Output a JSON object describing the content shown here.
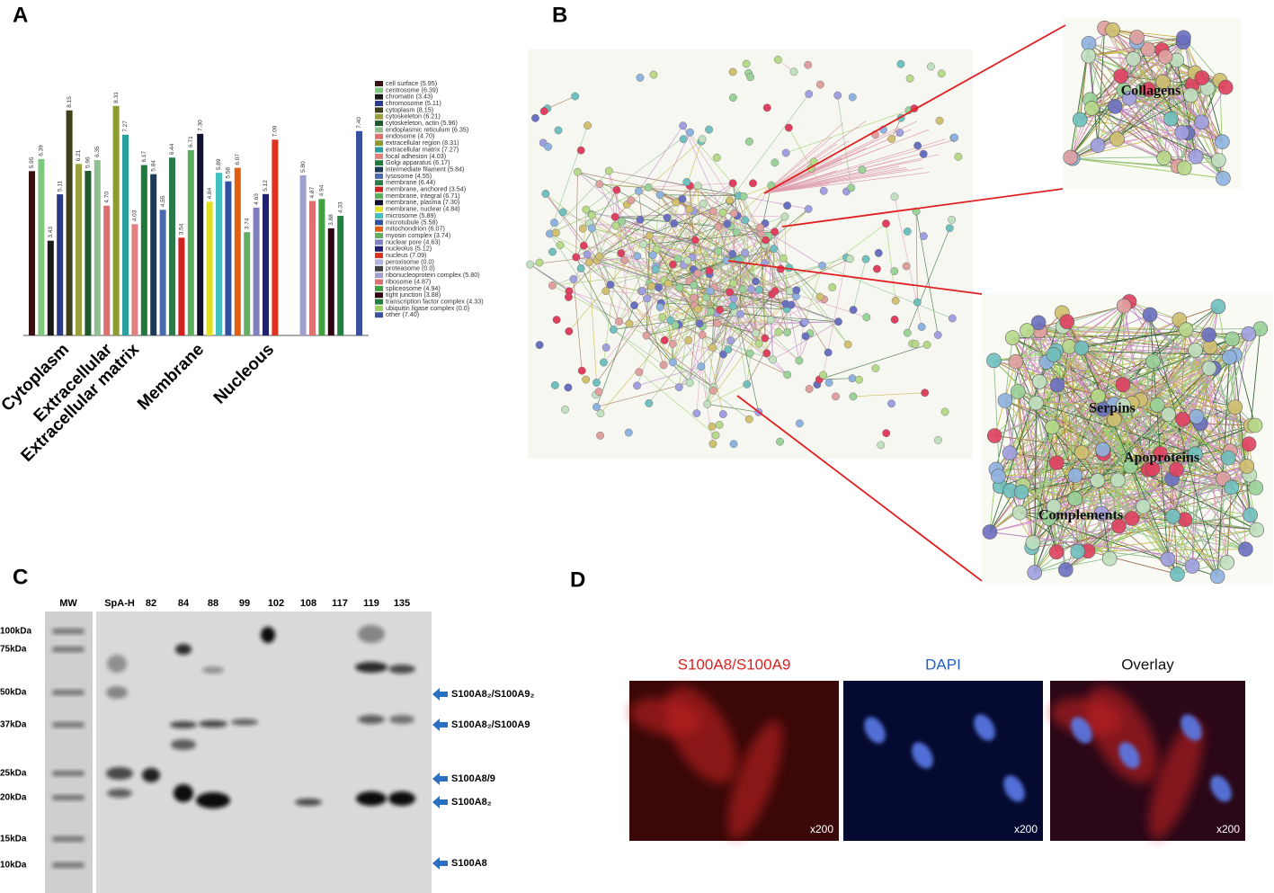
{
  "panel_labels": [
    "A",
    "B",
    "C",
    "D"
  ],
  "chart_data": {
    "type": "bar",
    "categories": [
      "cell surface (5.95)",
      "centrosome (6.39)",
      "chromatin (3.43)",
      "chromosome (5.11)",
      "cytoplasm (8.15)",
      "cytoskeleton (6.21)",
      "cytoskeleton, actin (5.96)",
      "endoplasmic reticulum (6.35)",
      "endosome (4.70)",
      "extracellular region (8.31)",
      "extracellular matrix (7.27)",
      "focal adhesion (4.03)",
      "Golgi apparatus (6.17)",
      "intermediate filament (5.84)",
      "lysosome (4.55)",
      "membrane (6.44)",
      "membrane, anchored (3.54)",
      "membrane, integral (6.71)",
      "membrane, plasma (7.30)",
      "membrane, nuclear (4.84)",
      "microsome (5.89)",
      "microtubule (5.58)",
      "mitochondrion (6.07)",
      "myosin complex (3.74)",
      "nuclear pore (4.63)",
      "nucleolus (5.12)",
      "nucleus (7.09)",
      "peroxisome (0.0)",
      "proteasome (0.0)",
      "ribonucleoprotein complex (5.80)",
      "ribosome (4.87)",
      "spliceosome (4.94)",
      "tight junction (3.88)",
      "transcription factor complex (4.33)",
      "ubiquitin ligase complex (0.0)",
      "other (7.40)"
    ],
    "values": [
      5.95,
      6.39,
      3.43,
      5.11,
      8.15,
      6.21,
      5.96,
      6.35,
      4.7,
      8.31,
      7.27,
      4.03,
      6.17,
      5.84,
      4.55,
      6.44,
      3.54,
      6.71,
      7.3,
      4.84,
      5.89,
      5.58,
      6.07,
      3.74,
      4.63,
      5.12,
      7.09,
      0.0,
      0.0,
      5.8,
      4.87,
      4.94,
      3.88,
      4.33,
      0.0,
      7.4
    ],
    "value_labels": [
      "5.95",
      "6.39",
      "3.43",
      "5.11",
      "8.15",
      "6.21",
      "5.96",
      "6.35",
      "4.70",
      "8.31",
      "7.27",
      "4.03",
      "6.17",
      "5.84",
      "4.55",
      "6.44",
      "3.54",
      "6.71",
      "7.30",
      "4.84",
      "5.89",
      "5.58",
      "6.07",
      "3.74",
      "4.63",
      "5.12",
      "7.09",
      null,
      null,
      "5.80",
      "4.87",
      "4.94",
      "3.88",
      "4.33",
      null,
      "7.40"
    ],
    "colors": [
      "#3a1010",
      "#7fc97f",
      "#1a1a1a",
      "#2a3a8a",
      "#3f3f1a",
      "#9aa03a",
      "#1f5a2a",
      "#90c090",
      "#e07070",
      "#8c9a30",
      "#2aa0a0",
      "#e08080",
      "#1f7a3a",
      "#1a3a5a",
      "#4a6ab0",
      "#2a7a4a",
      "#d02020",
      "#5ab05a",
      "#101030",
      "#e0e020",
      "#40c0c0",
      "#3050a0",
      "#e06010",
      "#60b060",
      "#8080c0",
      "#202070",
      "#e03020",
      "#b0b0e0",
      "#404040",
      "#a0a0d0",
      "#e07070",
      "#40a040",
      "#300010",
      "#208040",
      "#a0d060",
      "#3a50a0"
    ],
    "group_labels": [
      "Cytoplasm",
      "Extracellular",
      "Extracellular matrix",
      "Membrane",
      "Nucleous"
    ],
    "ylim": [
      0,
      8.5
    ]
  },
  "network": {
    "clusters": [
      "Collagens",
      "Serpins",
      "Apoproteins",
      "Complements"
    ]
  },
  "blot": {
    "lanes": [
      "MW",
      "SpA-H",
      "82",
      "84",
      "88",
      "99",
      "102",
      "108",
      "117",
      "119",
      "135"
    ],
    "markers": [
      "100kDa",
      "75kDa",
      "50kDa",
      "37kDa",
      "25kDa",
      "20kDa",
      "15kDa",
      "10kDa"
    ],
    "bands": [
      "S100A8₂/S100A9₂",
      "S100A8₂/S100A9",
      "S100A8/9",
      "S100A8₂",
      "S100A8"
    ]
  },
  "fluorescence": {
    "panels": [
      {
        "title": "S100A8/S100A9",
        "magnification": "x200"
      },
      {
        "title": "DAPI",
        "magnification": "x200"
      },
      {
        "title": "Overlay",
        "magnification": "x200"
      }
    ]
  }
}
